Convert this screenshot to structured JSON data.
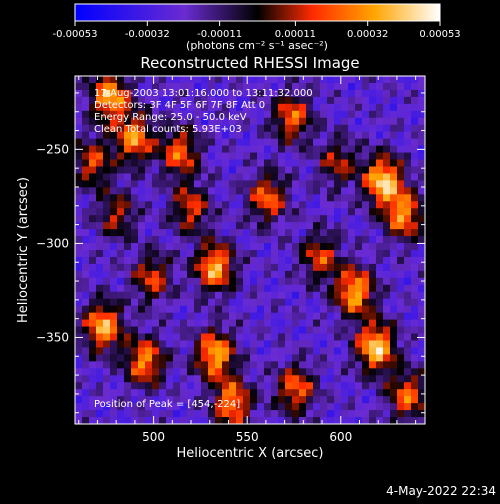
{
  "chart_data": {
    "type": "heatmap",
    "title": "Reconstructed RHESSI Image",
    "xlabel": "Heliocentric X (arcsec)",
    "ylabel": "Heliocentric Y (arcsec)",
    "xlim": [
      458,
      645
    ],
    "ylim": [
      -396,
      -211
    ],
    "xticks": [
      500,
      550,
      600
    ],
    "yticks": [
      -250,
      -300,
      -350
    ],
    "colorbar": {
      "min": -0.00053,
      "max": 0.00053,
      "ticks": [
        -0.00053,
        -0.00032,
        -0.00011,
        0.00011,
        0.00032,
        0.00053
      ],
      "tick_labels": [
        "-0.00053",
        "-0.00032",
        "-0.00011",
        "0.00011",
        "0.00032",
        "0.00053"
      ],
      "units_label": "(photons cm⁻² s⁻¹ asec⁻²)",
      "colors": [
        "#0000ff",
        "#6a2bd1",
        "#000000",
        "#ff2a00",
        "#ffa500",
        "#ffffff"
      ]
    },
    "annotations": [
      "17-Aug-2003 13:01:16.000 to 13:11:32.000",
      "Detectors: 3F 4F 5F 6F 7F 8F  Att 0",
      "Energy Range: 25.0 - 50.0 keV",
      "Clean    Total counts: 5.93E+03",
      "Position of Peak = [454,-224]"
    ],
    "grid": false
  },
  "footer": {
    "timestamp": "4-May-2022 22:34"
  }
}
